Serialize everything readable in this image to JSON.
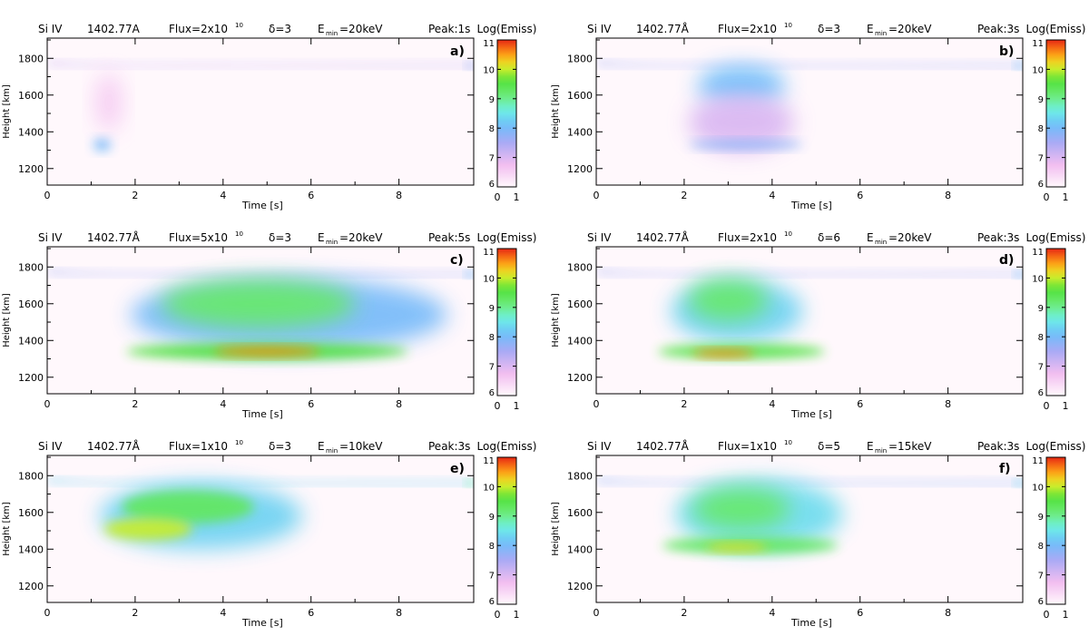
{
  "figure": {
    "colorbar_label": "Log(Emiss)",
    "colorbar_bottom_ticks": [
      "0",
      "1"
    ]
  },
  "chart_data": [
    {
      "type": "heatmap",
      "panel": "a)",
      "title_parts": {
        "line": "Si IV",
        "wavelength": "1402.77A",
        "flux": "Flux=2x10",
        "flux_exp": "10",
        "delta": "δ=3",
        "emin_pre": "E",
        "emin_sub": "min",
        "emin_post": "=20keV",
        "peak": "Peak:1s"
      },
      "xlabel": "Time  [s]",
      "ylabel": "Height  [km]",
      "xlim": [
        0,
        9.7
      ],
      "ylim": [
        1110,
        1910
      ],
      "xticks": [
        0,
        2,
        4,
        6,
        8
      ],
      "yticks": [
        1200,
        1400,
        1600,
        1800
      ],
      "colorbar": {
        "range": [
          6,
          11
        ],
        "ticks": [
          6,
          7,
          8,
          9,
          10,
          11
        ]
      },
      "features": [
        {
          "kind": "band",
          "x": [
            0,
            9.7
          ],
          "y": 1760,
          "width": 22,
          "value": 7.2
        },
        {
          "kind": "blob",
          "x": 1.25,
          "y": 1330,
          "rx": 0.2,
          "ry": 35,
          "value": 8.0
        },
        {
          "kind": "blob",
          "x": 1.4,
          "y": 1560,
          "rx": 0.3,
          "ry": 160,
          "value": 6.6
        }
      ]
    },
    {
      "type": "heatmap",
      "panel": "b)",
      "title_parts": {
        "line": "Si IV",
        "wavelength": "1402.77Å",
        "flux": "Flux=2x10",
        "flux_exp": "10",
        "delta": "δ=3",
        "emin_pre": "E",
        "emin_sub": "min",
        "emin_post": "=20keV",
        "peak": "Peak:3s"
      },
      "xlabel": "Time  [s]",
      "ylabel": "Height  [km]",
      "xlim": [
        0,
        9.7
      ],
      "ylim": [
        1110,
        1910
      ],
      "xticks": [
        0,
        2,
        4,
        6,
        8
      ],
      "yticks": [
        1200,
        1400,
        1600,
        1800
      ],
      "colorbar": {
        "range": [
          6,
          11
        ],
        "ticks": [
          6,
          7,
          8,
          9,
          10,
          11
        ]
      },
      "features": [
        {
          "kind": "band",
          "x": [
            0,
            9.7
          ],
          "y": 1760,
          "width": 22,
          "value": 7.6
        },
        {
          "kind": "blob",
          "x": 3.3,
          "y": 1650,
          "rx": 1.0,
          "ry": 110,
          "value": 8.1
        },
        {
          "kind": "blob",
          "x": 3.3,
          "y": 1450,
          "rx": 1.2,
          "ry": 160,
          "value": 7.0
        },
        {
          "kind": "blob",
          "x": 3.4,
          "y": 1330,
          "rx": 1.3,
          "ry": 25,
          "value": 7.8
        }
      ]
    },
    {
      "type": "heatmap",
      "panel": "c)",
      "title_parts": {
        "line": "Si IV",
        "wavelength": "1402.77Å",
        "flux": "Flux=5x10",
        "flux_exp": "10",
        "delta": "δ=3",
        "emin_pre": "E",
        "emin_sub": "min",
        "emin_post": "=20keV",
        "peak": "Peak:5s"
      },
      "xlabel": "Time  [s]",
      "ylabel": "Height  [km]",
      "xlim": [
        0,
        9.7
      ],
      "ylim": [
        1110,
        1910
      ],
      "xticks": [
        0,
        2,
        4,
        6,
        8
      ],
      "yticks": [
        1200,
        1400,
        1600,
        1800
      ],
      "colorbar": {
        "range": [
          6,
          11
        ],
        "ticks": [
          6,
          7,
          8,
          9,
          10,
          11
        ]
      },
      "features": [
        {
          "kind": "band",
          "x": [
            0,
            9.7
          ],
          "y": 1760,
          "width": 22,
          "value": 7.6
        },
        {
          "kind": "blob",
          "x": 5.5,
          "y": 1540,
          "rx": 3.6,
          "ry": 200,
          "value": 8.0
        },
        {
          "kind": "blob",
          "x": 4.8,
          "y": 1600,
          "rx": 2.2,
          "ry": 130,
          "value": 9.2
        },
        {
          "kind": "blob",
          "x": 5.0,
          "y": 1340,
          "rx": 3.2,
          "ry": 45,
          "value": 9.6
        },
        {
          "kind": "blob",
          "x": 5.0,
          "y": 1340,
          "rx": 1.2,
          "ry": 25,
          "value": 10.6
        }
      ]
    },
    {
      "type": "heatmap",
      "panel": "d)",
      "title_parts": {
        "line": "Si IV",
        "wavelength": "1402.77Å",
        "flux": "Flux=2x10",
        "flux_exp": "10",
        "delta": "δ=6",
        "emin_pre": "E",
        "emin_sub": "min",
        "emin_post": "=20keV",
        "peak": "Peak:3s"
      },
      "xlabel": "Time  [s]",
      "ylabel": "Height  [km]",
      "xlim": [
        0,
        9.7
      ],
      "ylim": [
        1110,
        1910
      ],
      "xticks": [
        0,
        2,
        4,
        6,
        8
      ],
      "yticks": [
        1200,
        1400,
        1600,
        1800
      ],
      "colorbar": {
        "range": [
          6,
          11
        ],
        "ticks": [
          6,
          7,
          8,
          9,
          10,
          11
        ]
      },
      "features": [
        {
          "kind": "band",
          "x": [
            0,
            9.7
          ],
          "y": 1760,
          "width": 22,
          "value": 7.6
        },
        {
          "kind": "blob",
          "x": 3.2,
          "y": 1560,
          "rx": 1.5,
          "ry": 170,
          "value": 8.3
        },
        {
          "kind": "blob",
          "x": 3.0,
          "y": 1620,
          "rx": 0.9,
          "ry": 110,
          "value": 9.2
        },
        {
          "kind": "blob",
          "x": 3.3,
          "y": 1340,
          "rx": 1.9,
          "ry": 40,
          "value": 9.5
        },
        {
          "kind": "blob",
          "x": 2.9,
          "y": 1330,
          "rx": 0.7,
          "ry": 22,
          "value": 10.6
        }
      ]
    },
    {
      "type": "heatmap",
      "panel": "e)",
      "title_parts": {
        "line": "Si IV",
        "wavelength": "1402.77Å",
        "flux": "Flux=1x10",
        "flux_exp": "10",
        "delta": "δ=3",
        "emin_pre": "E",
        "emin_sub": "min",
        "emin_post": "=10keV",
        "peak": "Peak:3s"
      },
      "xlabel": "Time  [s]",
      "ylabel": "Height  [km]",
      "xlim": [
        0,
        9.7
      ],
      "ylim": [
        1110,
        1910
      ],
      "xticks": [
        0,
        2,
        4,
        6,
        8
      ],
      "yticks": [
        1200,
        1400,
        1600,
        1800
      ],
      "colorbar": {
        "range": [
          6,
          11
        ],
        "ticks": [
          6,
          7,
          8,
          9,
          10,
          11
        ]
      },
      "features": [
        {
          "kind": "band",
          "x": [
            0,
            9.7
          ],
          "y": 1760,
          "width": 22,
          "value": 8.3
        },
        {
          "kind": "blob",
          "x": 3.5,
          "y": 1580,
          "rx": 2.3,
          "ry": 180,
          "value": 8.3
        },
        {
          "kind": "blob",
          "x": 3.2,
          "y": 1630,
          "rx": 1.5,
          "ry": 90,
          "value": 9.3
        },
        {
          "kind": "blob",
          "x": 2.3,
          "y": 1510,
          "rx": 1.0,
          "ry": 60,
          "value": 10.0
        }
      ]
    },
    {
      "type": "heatmap",
      "panel": "f)",
      "title_parts": {
        "line": "Si IV",
        "wavelength": "1402.77Å",
        "flux": "Flux=1x10",
        "flux_exp": "10",
        "delta": "δ=5",
        "emin_pre": "E",
        "emin_sub": "min",
        "emin_post": "=15keV",
        "peak": "Peak:3s"
      },
      "xlabel": "Time  [s]",
      "ylabel": "Height  [km]",
      "xlim": [
        0,
        9.7
      ],
      "ylim": [
        1110,
        1910
      ],
      "xticks": [
        0,
        2,
        4,
        6,
        8
      ],
      "yticks": [
        1200,
        1400,
        1600,
        1800
      ],
      "colorbar": {
        "range": [
          6,
          11
        ],
        "ticks": [
          6,
          7,
          8,
          9,
          10,
          11
        ]
      },
      "features": [
        {
          "kind": "band",
          "x": [
            0,
            9.7
          ],
          "y": 1760,
          "width": 22,
          "value": 7.8
        },
        {
          "kind": "blob",
          "x": 3.7,
          "y": 1590,
          "rx": 1.9,
          "ry": 190,
          "value": 8.4
        },
        {
          "kind": "blob",
          "x": 3.3,
          "y": 1620,
          "rx": 1.1,
          "ry": 110,
          "value": 9.2
        },
        {
          "kind": "blob",
          "x": 3.5,
          "y": 1420,
          "rx": 2.0,
          "ry": 45,
          "value": 9.3
        },
        {
          "kind": "blob",
          "x": 3.2,
          "y": 1410,
          "rx": 0.7,
          "ry": 22,
          "value": 10.2
        }
      ]
    }
  ]
}
